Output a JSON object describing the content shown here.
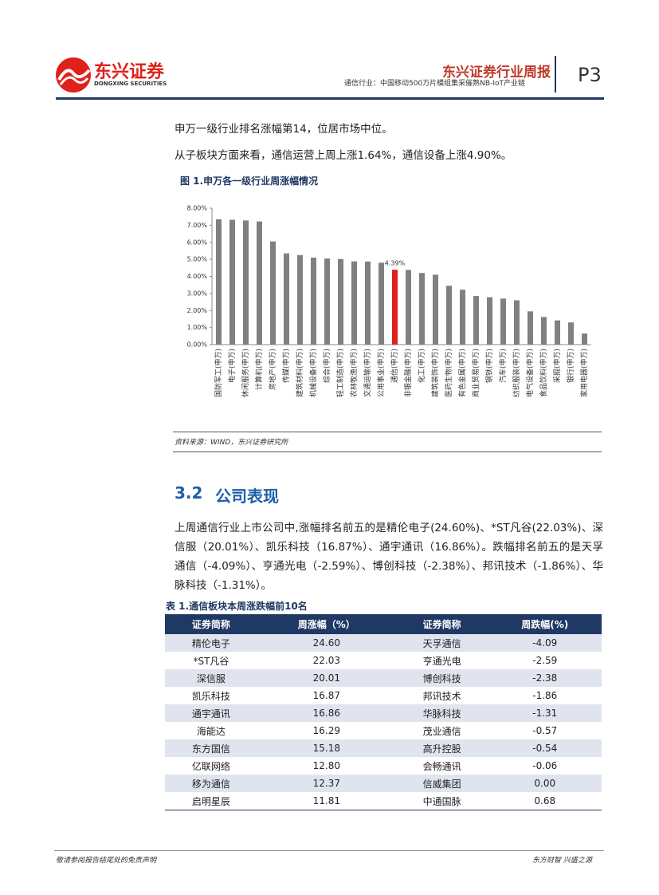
{
  "header": {
    "logo_cn": "东兴证券",
    "logo_en": "DONGXING SECURITIES",
    "report_type": "东兴证券行业周报",
    "subtitle": "通信行业：中国移动500万片模组集采催熟NB-IoT产业链",
    "page": "P3"
  },
  "intro": [
    "申万一级行业排名涨幅第14，位居市场中位。",
    "从子板块方面来看，通信运营上周上涨1.64%，通信设备上涨4.90%。"
  ],
  "figure": {
    "caption": "图 1.申万各一级行业周涨幅情况",
    "source": "资料来源：WIND，东兴证券研究所"
  },
  "chart_data": {
    "type": "bar",
    "categories": [
      "国防军工(申万)",
      "电子(申万)",
      "休闲服务(申万)",
      "计算机(申万)",
      "房地产(申万)",
      "传媒(申万)",
      "建筑材料(申万)",
      "机械设备(申万)",
      "综合(申万)",
      "轻工制造(申万)",
      "农林牧渔(申万)",
      "交通运输(申万)",
      "公用事业(申万)",
      "通信(申万)",
      "非银金融(申万)",
      "化工(申万)",
      "建筑装饰(申万)",
      "医药生物(申万)",
      "有色金属(申万)",
      "商业贸易(申万)",
      "钢铁(申万)",
      "汽车(申万)",
      "纺织服装(申万)",
      "电气设备(申万)",
      "食品饮料(申万)",
      "采掘(申万)",
      "银行(申万)",
      "家用电器(申万)"
    ],
    "values": [
      7.35,
      7.32,
      7.28,
      7.22,
      6.05,
      5.35,
      5.25,
      5.1,
      5.05,
      5.02,
      4.88,
      4.87,
      4.8,
      4.39,
      4.38,
      4.2,
      4.1,
      3.45,
      3.22,
      2.85,
      2.78,
      2.7,
      2.6,
      1.95,
      1.62,
      1.42,
      1.3,
      0.65
    ],
    "value_labels": [
      null,
      null,
      null,
      null,
      null,
      null,
      null,
      null,
      null,
      null,
      null,
      null,
      null,
      "4.39%",
      null,
      null,
      null,
      null,
      null,
      null,
      null,
      null,
      null,
      null,
      null,
      null,
      null,
      null
    ],
    "colors": [
      "#808080",
      "#808080",
      "#808080",
      "#808080",
      "#808080",
      "#808080",
      "#808080",
      "#808080",
      "#808080",
      "#808080",
      "#808080",
      "#808080",
      "#808080",
      "#e0201b",
      "#808080",
      "#808080",
      "#808080",
      "#808080",
      "#808080",
      "#808080",
      "#808080",
      "#808080",
      "#808080",
      "#808080",
      "#808080",
      "#808080",
      "#808080",
      "#808080"
    ],
    "ylim": [
      0,
      8
    ],
    "yticks": [
      {
        "value": 0,
        "label": "0.00%"
      },
      {
        "value": 1,
        "label": "1.00%"
      },
      {
        "value": 2,
        "label": "2.00%"
      },
      {
        "value": 3,
        "label": "3.00%"
      },
      {
        "value": 4,
        "label": "4.00%"
      },
      {
        "value": 5,
        "label": "5.00%"
      },
      {
        "value": 6,
        "label": "6.00%"
      },
      {
        "value": 7,
        "label": "7.00%"
      },
      {
        "value": 8,
        "label": "8.00%"
      }
    ]
  },
  "section": {
    "number": "3.2",
    "title": "公司表现",
    "text": "上周通信行业上市公司中,涨幅排名前五的是精伦电子(24.60%)、*ST凡谷(22.03%)、深信服（20.01%）、凯乐科技（16.87%）、通宇通讯（16.86%）。跌幅排名前五的是天孚通信（-4.09%）、亨通光电（-2.59%）、博创科技（-2.38%）、邦讯技术（-1.86%）、华脉科技（-1.31%）。"
  },
  "table": {
    "caption": "表 1.通信板块本周涨跌幅前10名",
    "header": [
      "证券简称",
      "周涨幅（%）",
      "证券简称",
      "周跌幅(%)"
    ],
    "rows": [
      [
        "精伦电子",
        "24.60",
        "天孚通信",
        "-4.09"
      ],
      [
        "*ST凡谷",
        "22.03",
        "亨通光电",
        "-2.59"
      ],
      [
        "深信服",
        "20.01",
        "博创科技",
        "-2.38"
      ],
      [
        "凯乐科技",
        "16.87",
        "邦讯技术",
        "-1.86"
      ],
      [
        "通宇通讯",
        "16.86",
        "华脉科技",
        "-1.31"
      ],
      [
        "海能达",
        "16.29",
        "茂业通信",
        "-0.57"
      ],
      [
        "东方国信",
        "15.18",
        "高升控股",
        "-0.54"
      ],
      [
        "亿联网络",
        "12.80",
        "会畅通讯",
        "-0.06"
      ],
      [
        "移为通信",
        "12.37",
        "信威集团",
        "0.00"
      ],
      [
        "启明星辰",
        "11.81",
        "中通国脉",
        "0.68"
      ]
    ]
  },
  "footer": {
    "left": "敬请参阅报告结尾处的免责声明",
    "right": "东方财智 兴盛之源"
  }
}
